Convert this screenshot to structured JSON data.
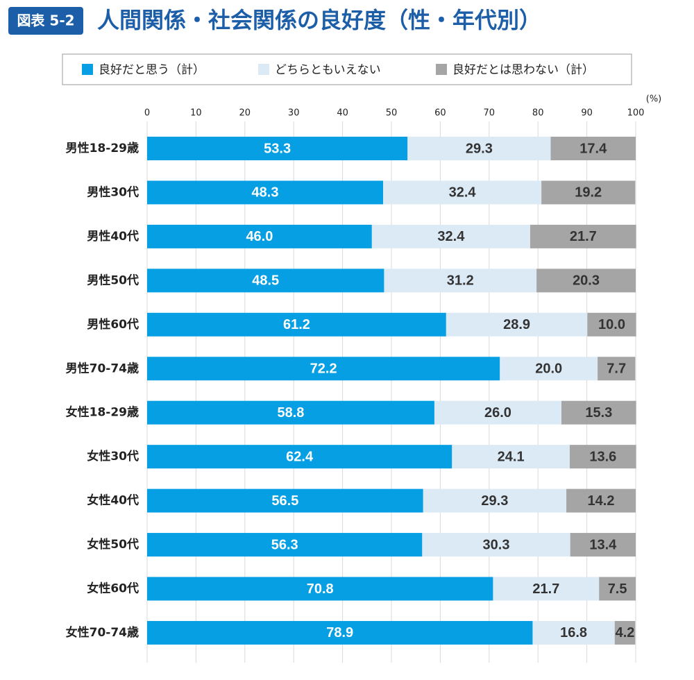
{
  "chart_data": {
    "type": "stacked-barh",
    "figure_label": "図表 5-2",
    "title": "人間関係・社会関係の良好度（性・年代別）",
    "unit_label": "(%)",
    "categories": [
      "男性18-29歳",
      "男性30代",
      "男性40代",
      "男性50代",
      "男性60代",
      "男性70-74歳",
      "女性18-29歳",
      "女性30代",
      "女性40代",
      "女性50代",
      "女性60代",
      "女性70-74歳"
    ],
    "series": [
      {
        "name": "良好だと思う（計）",
        "color": "#079fe3",
        "values": [
          53.3,
          48.3,
          46.0,
          48.5,
          61.2,
          72.2,
          58.8,
          62.4,
          56.5,
          56.3,
          70.8,
          78.9
        ],
        "value_labels": [
          "53.3",
          "48.3",
          "46.0",
          "48.5",
          "61.2",
          "72.2",
          "58.8",
          "62.4",
          "56.5",
          "56.3",
          "70.8",
          "78.9"
        ]
      },
      {
        "name": "どちらともいえない",
        "color": "#dceaf6",
        "values": [
          29.3,
          32.4,
          32.4,
          31.2,
          28.9,
          20.0,
          26.0,
          24.1,
          29.3,
          30.3,
          21.7,
          16.8
        ],
        "value_labels": [
          "29.3",
          "32.4",
          "32.4",
          "31.2",
          "28.9",
          "20.0",
          "26.0",
          "24.1",
          "29.3",
          "30.3",
          "21.7",
          "16.8"
        ]
      },
      {
        "name": "良好だとは思わない（計）",
        "color": "#a5a5a5",
        "values": [
          17.4,
          19.2,
          21.7,
          20.3,
          10.0,
          7.7,
          15.3,
          13.6,
          14.2,
          13.4,
          7.5,
          4.2
        ],
        "value_labels": [
          "17.4",
          "19.2",
          "21.7",
          "20.3",
          "10.0",
          "7.7",
          "15.3",
          "13.6",
          "14.2",
          "13.4",
          "7.5",
          "4.2"
        ]
      }
    ],
    "xlim": [
      0,
      100
    ],
    "xticks": [
      0,
      10,
      20,
      30,
      40,
      50,
      60,
      70,
      80,
      90,
      100
    ],
    "grid": true
  }
}
